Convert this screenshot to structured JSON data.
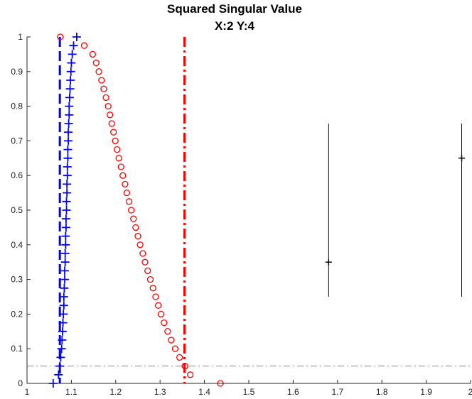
{
  "chart_data": {
    "type": "scatter",
    "title": "Squared Singular Value",
    "subtitle": "X:2  Y:4",
    "xlabel": "",
    "ylabel": "",
    "xlim": [
      1,
      2
    ],
    "ylim": [
      0,
      1
    ],
    "xticks": [
      "1",
      "1.1",
      "1.2",
      "1.3",
      "1.4",
      "1.5",
      "1.6",
      "1.7",
      "1.8",
      "1.9",
      "2"
    ],
    "yticks": [
      "0",
      "0.1",
      "0.2",
      "0.3",
      "0.4",
      "0.5",
      "0.6",
      "0.7",
      "0.8",
      "0.9",
      "1"
    ],
    "grid": false,
    "series": [
      {
        "marker": "plus",
        "color": "#0000ff",
        "points": [
          [
            1.059,
            0.0
          ],
          [
            1.071,
            0.025
          ],
          [
            1.074,
            0.05
          ],
          [
            1.076,
            0.075
          ],
          [
            1.078,
            0.1
          ],
          [
            1.079,
            0.125
          ],
          [
            1.08,
            0.15
          ],
          [
            1.081,
            0.175
          ],
          [
            1.082,
            0.2
          ],
          [
            1.083,
            0.225
          ],
          [
            1.083,
            0.25
          ],
          [
            1.084,
            0.275
          ],
          [
            1.085,
            0.3
          ],
          [
            1.085,
            0.325
          ],
          [
            1.086,
            0.35
          ],
          [
            1.086,
            0.375
          ],
          [
            1.087,
            0.4
          ],
          [
            1.087,
            0.425
          ],
          [
            1.088,
            0.45
          ],
          [
            1.088,
            0.475
          ],
          [
            1.089,
            0.5
          ],
          [
            1.089,
            0.525
          ],
          [
            1.09,
            0.55
          ],
          [
            1.09,
            0.575
          ],
          [
            1.091,
            0.6
          ],
          [
            1.091,
            0.625
          ],
          [
            1.092,
            0.65
          ],
          [
            1.092,
            0.675
          ],
          [
            1.093,
            0.7
          ],
          [
            1.093,
            0.725
          ],
          [
            1.094,
            0.75
          ],
          [
            1.095,
            0.775
          ],
          [
            1.095,
            0.8
          ],
          [
            1.096,
            0.825
          ],
          [
            1.097,
            0.85
          ],
          [
            1.098,
            0.875
          ],
          [
            1.099,
            0.9
          ],
          [
            1.1,
            0.925
          ],
          [
            1.102,
            0.95
          ],
          [
            1.105,
            0.975
          ],
          [
            1.112,
            1.0
          ]
        ]
      },
      {
        "marker": "circle",
        "color": "#ff0000",
        "points": [
          [
            1.436,
            0.0
          ],
          [
            1.368,
            0.025
          ],
          [
            1.356,
            0.05
          ],
          [
            1.344,
            0.075
          ],
          [
            1.334,
            0.1
          ],
          [
            1.325,
            0.125
          ],
          [
            1.317,
            0.15
          ],
          [
            1.309,
            0.175
          ],
          [
            1.302,
            0.2
          ],
          [
            1.296,
            0.225
          ],
          [
            1.29,
            0.25
          ],
          [
            1.284,
            0.275
          ],
          [
            1.278,
            0.3
          ],
          [
            1.272,
            0.325
          ],
          [
            1.266,
            0.35
          ],
          [
            1.261,
            0.375
          ],
          [
            1.255,
            0.4
          ],
          [
            1.25,
            0.425
          ],
          [
            1.245,
            0.45
          ],
          [
            1.24,
            0.475
          ],
          [
            1.235,
            0.5
          ],
          [
            1.23,
            0.525
          ],
          [
            1.225,
            0.55
          ],
          [
            1.221,
            0.575
          ],
          [
            1.216,
            0.6
          ],
          [
            1.212,
            0.625
          ],
          [
            1.207,
            0.65
          ],
          [
            1.203,
            0.675
          ],
          [
            1.199,
            0.7
          ],
          [
            1.195,
            0.725
          ],
          [
            1.191,
            0.75
          ],
          [
            1.187,
            0.775
          ],
          [
            1.183,
            0.8
          ],
          [
            1.178,
            0.825
          ],
          [
            1.173,
            0.85
          ],
          [
            1.168,
            0.875
          ],
          [
            1.162,
            0.9
          ],
          [
            1.156,
            0.925
          ],
          [
            1.148,
            0.95
          ],
          [
            1.129,
            0.975
          ],
          [
            1.075,
            1.0
          ]
        ]
      },
      {
        "marker": "plus",
        "color": "#000000",
        "points": [
          [
            1.68,
            0.35
          ],
          [
            1.98,
            0.65
          ]
        ],
        "error_ranges": [
          [
            0.25,
            0.75
          ],
          [
            0.25,
            0.75
          ]
        ]
      }
    ],
    "reference_lines": [
      {
        "orientation": "vertical",
        "x": 1.074,
        "style": "dashed",
        "color": "#0000ff"
      },
      {
        "orientation": "vertical",
        "x": 1.355,
        "style": "dash-dot",
        "color": "#ff0000"
      },
      {
        "orientation": "horizontal",
        "y": 0.05,
        "style": "dash-dot",
        "color": "#8c8c8c"
      }
    ]
  }
}
